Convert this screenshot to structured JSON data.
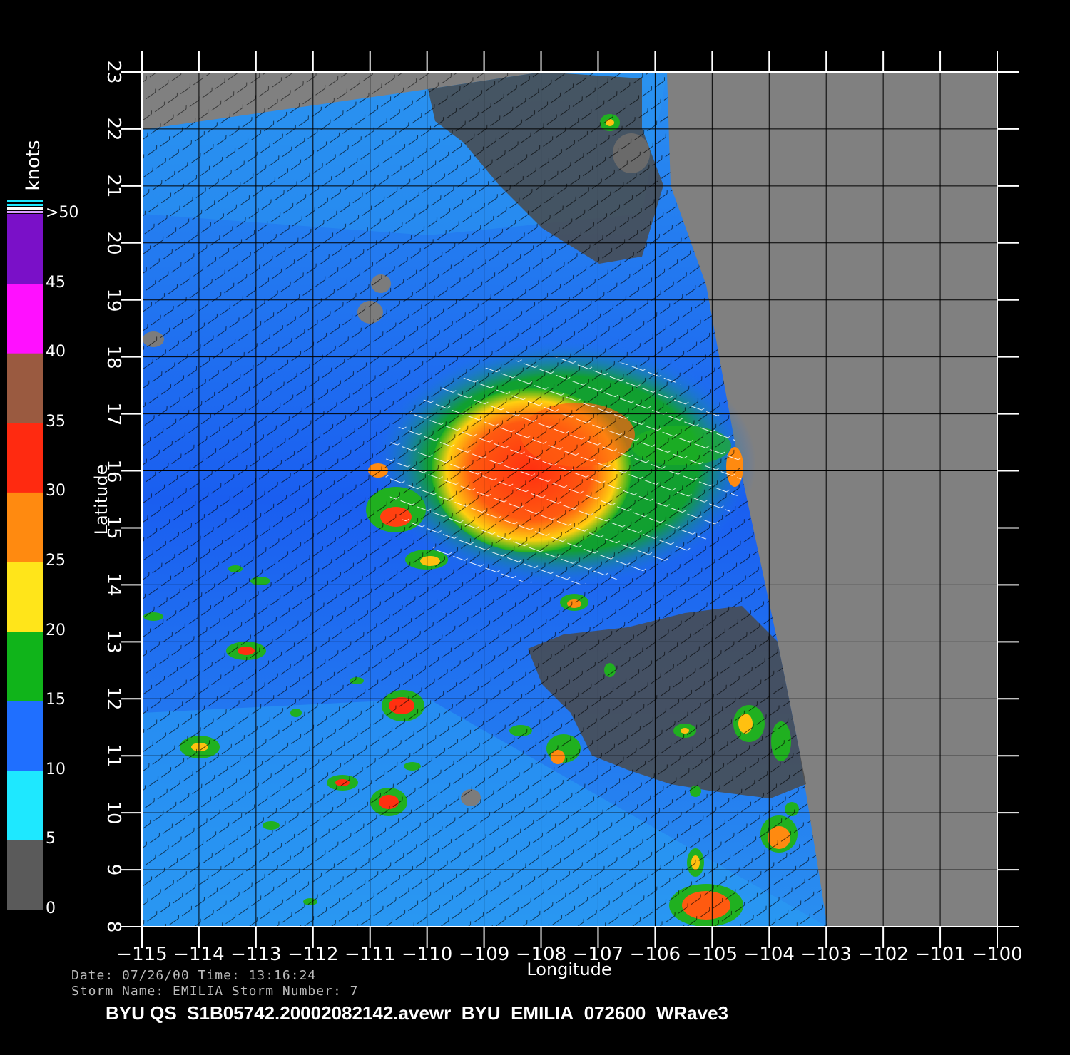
{
  "map": {
    "units_label": "knots",
    "ylabel": "Latitude",
    "xlabel": "Longitude",
    "lat_ticks": [
      "23",
      "22",
      "21",
      "20",
      "19",
      "18",
      "17",
      "16",
      "15",
      "14",
      "13",
      "12",
      "11",
      "10",
      "9",
      "8"
    ],
    "lon_ticks": [
      "−115",
      "−114",
      "−113",
      "−112",
      "−111",
      "−110",
      "−109",
      "−108",
      "−107",
      "−106",
      "−105",
      "−104",
      "−103",
      "−102",
      "−101",
      "−100"
    ],
    "lat_range": [
      8,
      23
    ],
    "lon_range": [
      -115,
      -100
    ],
    "grid": true
  },
  "colorbar": {
    "ticks": [
      ">50",
      "45",
      "40",
      "35",
      "30",
      "25",
      "20",
      "15",
      "10",
      "5",
      "0"
    ],
    "bands": [
      {
        "label": "0-5",
        "color": "#5a5a5a"
      },
      {
        "label": "5-10",
        "color": "#1ee8ff"
      },
      {
        "label": "10-15",
        "color": "#1f6fff"
      },
      {
        "label": "15-20",
        "color": "#10b41a"
      },
      {
        "label": "20-25",
        "color": "#ffe51a"
      },
      {
        "label": "25-30",
        "color": "#ff8a10"
      },
      {
        "label": "30-35",
        "color": "#ff2a10"
      },
      {
        "label": "35-40",
        "color": "#9a5a40"
      },
      {
        "label": "40-45",
        "color": "#ff10ff"
      },
      {
        "label": ">45",
        "color": "#7a10c8"
      }
    ]
  },
  "meta": {
    "date_line": "Date: 07/26/00   Time: 13:16:24",
    "storm_line": "Storm  Name: EMILIA   Storm  Number: 7",
    "file_title": "BYU  QS_S1B05742.20002082142.avewr_BYU_EMILIA_072600_WRave3"
  }
}
